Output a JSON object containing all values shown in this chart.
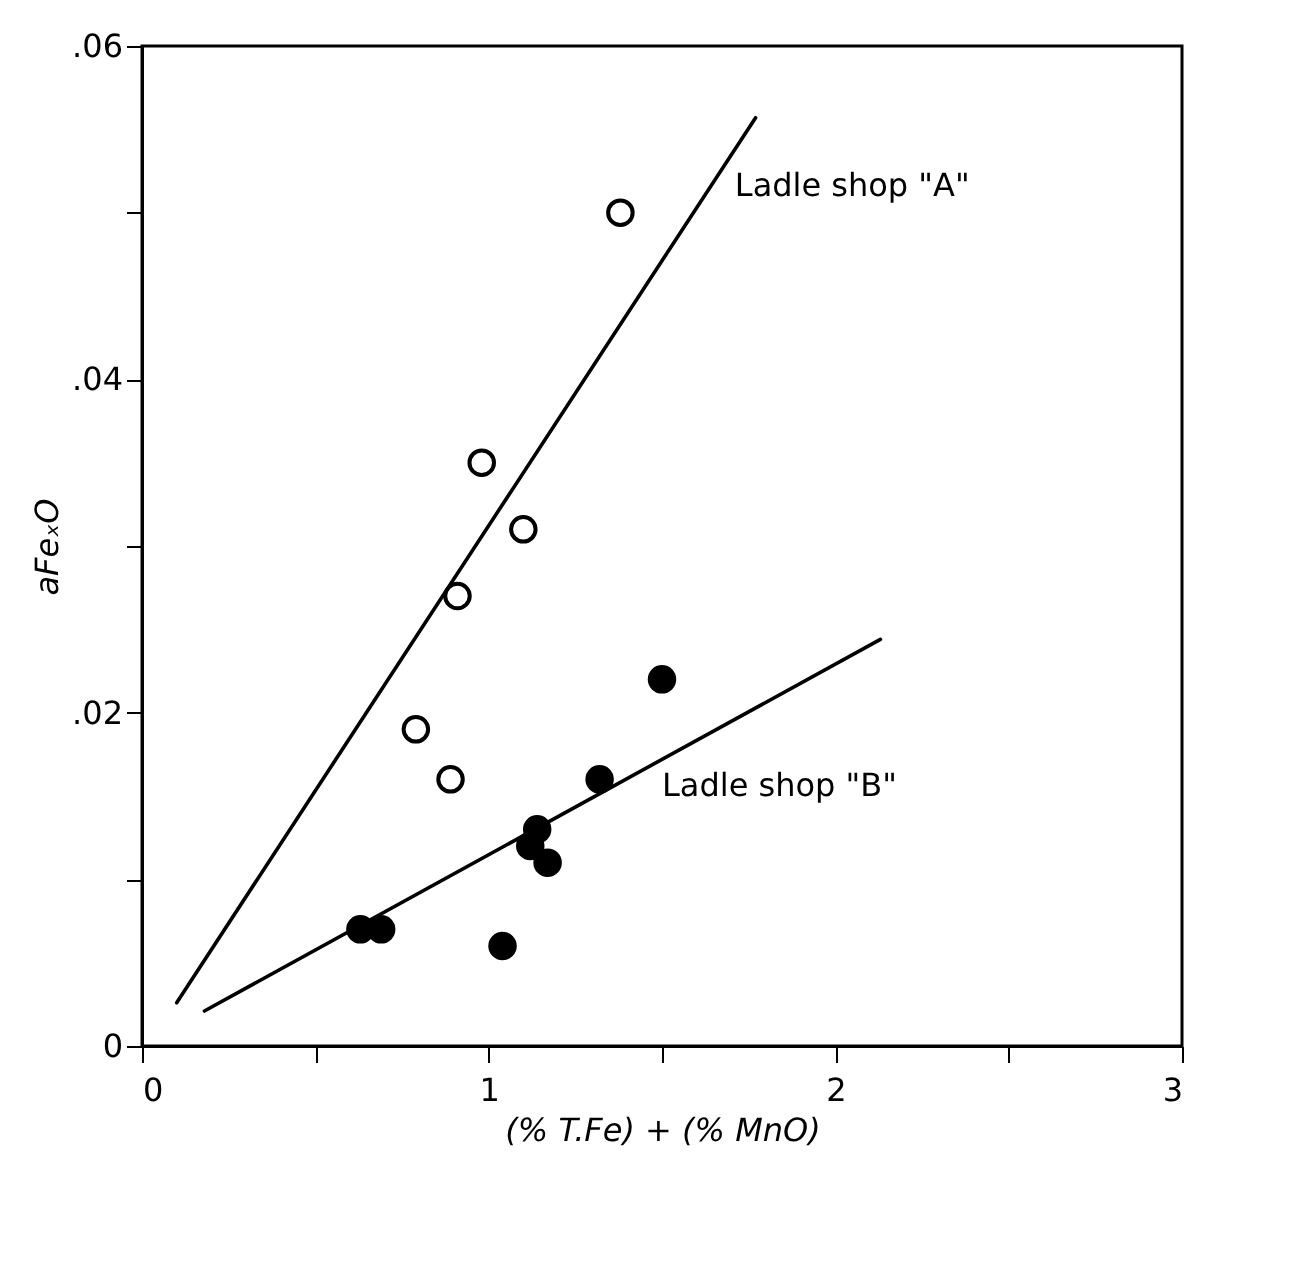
{
  "chart_data": {
    "type": "scatter",
    "xlabel": "(% T.Fe) +   (% MnO)",
    "ylabel": "aFeₓO",
    "xlim": [
      0,
      3
    ],
    "ylim": [
      0,
      0.06
    ],
    "xticks": [
      0,
      {
        "value": 0.5,
        "label": null
      },
      1,
      {
        "value": 1.5,
        "label": null
      },
      2,
      {
        "value": 2.5,
        "label": null
      },
      3
    ],
    "yticks": [
      0,
      {
        "value": 0.01,
        "label": null
      },
      {
        "value": 0.02,
        "label": ".02"
      },
      {
        "value": 0.03,
        "label": null
      },
      {
        "value": 0.04,
        "label": ".04"
      },
      {
        "value": 0.05,
        "label": null
      },
      {
        "value": 0.06,
        "label": ".06"
      }
    ],
    "grid": false,
    "marker": "circle",
    "series": [
      {
        "color": "#ffffff",
        "x": [
          1.38,
          0.98,
          1.1,
          0.91,
          0.79,
          0.89
        ],
        "values": [
          0.05,
          0.035,
          0.031,
          0.027,
          0.019,
          0.016
        ]
      },
      {
        "color": "#000000",
        "x": [
          0.63,
          0.69,
          1.04,
          1.12,
          1.14,
          1.17,
          1.32,
          1.5
        ],
        "values": [
          0.007,
          0.007,
          0.006,
          0.012,
          0.013,
          0.011,
          0.016,
          0.022
        ]
      },
      {
        "type": "line",
        "marker": "none",
        "color": "#000000",
        "line_style": "solid",
        "x": [
          0.1,
          1.77
        ],
        "values": [
          0.0026,
          0.0557
        ]
      },
      {
        "type": "line",
        "marker": "none",
        "color": "#000000",
        "line_style": "solid",
        "x": [
          0.18,
          2.13
        ],
        "values": [
          0.0021,
          0.0244
        ]
      }
    ],
    "annotations": [
      "Ladle shop \"A\"",
      "Ladle shop \"B\""
    ]
  }
}
